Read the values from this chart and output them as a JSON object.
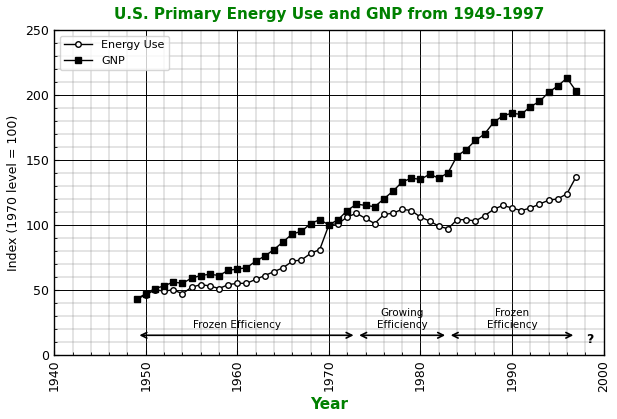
{
  "title": "U.S. Primary Energy Use and GNP from 1949-1997",
  "title_color": "#008000",
  "xlabel": "Year",
  "xlabel_color": "#008000",
  "ylabel": "Index (1970 level = 100)",
  "xlim": [
    1940,
    2000
  ],
  "ylim": [
    0,
    250
  ],
  "xticks": [
    1940,
    1950,
    1960,
    1970,
    1980,
    1990,
    2000
  ],
  "yticks": [
    0,
    50,
    100,
    150,
    200,
    250
  ],
  "energy_use": {
    "years": [
      1949,
      1950,
      1951,
      1952,
      1953,
      1954,
      1955,
      1956,
      1957,
      1958,
      1959,
      1960,
      1961,
      1962,
      1963,
      1964,
      1965,
      1966,
      1967,
      1968,
      1969,
      1970,
      1971,
      1972,
      1973,
      1974,
      1975,
      1976,
      1977,
      1978,
      1979,
      1980,
      1981,
      1982,
      1983,
      1984,
      1985,
      1986,
      1987,
      1988,
      1989,
      1990,
      1991,
      1992,
      1993,
      1994,
      1995,
      1996,
      1997
    ],
    "values": [
      43,
      46,
      50,
      49,
      50,
      47,
      52,
      54,
      53,
      51,
      54,
      55,
      55,
      58,
      61,
      64,
      67,
      72,
      73,
      78,
      81,
      100,
      101,
      106,
      109,
      105,
      101,
      108,
      109,
      112,
      111,
      106,
      103,
      99,
      97,
      104,
      104,
      103,
      107,
      112,
      115,
      113,
      111,
      113,
      116,
      119,
      120,
      124,
      137
    ]
  },
  "gnp": {
    "years": [
      1949,
      1950,
      1951,
      1952,
      1953,
      1954,
      1955,
      1956,
      1957,
      1958,
      1959,
      1960,
      1961,
      1962,
      1963,
      1964,
      1965,
      1966,
      1967,
      1968,
      1969,
      1970,
      1971,
      1972,
      1973,
      1974,
      1975,
      1976,
      1977,
      1978,
      1979,
      1980,
      1981,
      1982,
      1983,
      1984,
      1985,
      1986,
      1987,
      1988,
      1989,
      1990,
      1991,
      1992,
      1993,
      1994,
      1995,
      1996,
      1997
    ],
    "values": [
      43,
      47,
      51,
      53,
      56,
      55,
      59,
      61,
      62,
      61,
      65,
      66,
      67,
      72,
      76,
      81,
      87,
      93,
      95,
      101,
      104,
      100,
      104,
      111,
      116,
      115,
      114,
      120,
      126,
      133,
      136,
      135,
      139,
      136,
      140,
      153,
      158,
      165,
      170,
      179,
      184,
      186,
      185,
      191,
      195,
      202,
      207,
      213,
      203
    ]
  },
  "annotations": [
    {
      "text": "Frozen Efficiency",
      "x_center": 1960,
      "y": 18,
      "x_start": 1949,
      "x_end": 1973
    },
    {
      "text": "Growing\nEfficiency",
      "x_center": 1977.5,
      "y": 18,
      "x_start": 1973,
      "x_end": 1983
    },
    {
      "text": "Frozen\nEfficiency",
      "x_center": 1991,
      "y": 18,
      "x_start": 1983,
      "x_end": 1997
    }
  ],
  "legend_energy_label": "Energy Use",
  "legend_gnp_label": "GNP"
}
